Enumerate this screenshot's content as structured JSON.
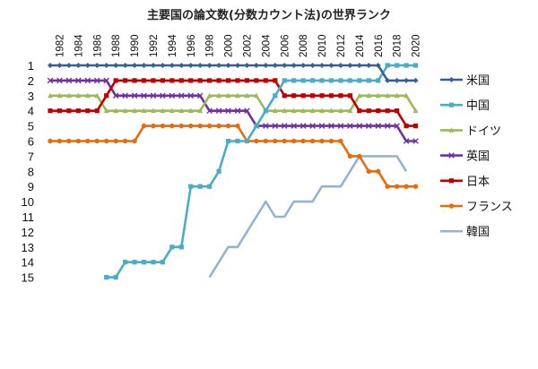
{
  "chart_data": {
    "type": "line",
    "title": "主要国の論文数(分数カウント法)の世界ランク",
    "x_ticks": [
      "1982",
      "1984",
      "1986",
      "1988",
      "1990",
      "1992",
      "1994",
      "1996",
      "1998",
      "2000",
      "2002",
      "2004",
      "2006",
      "2008",
      "2010",
      "2012",
      "2014",
      "2016",
      "2018",
      "2020"
    ],
    "y_ticks": [
      "1",
      "2",
      "3",
      "4",
      "5",
      "6",
      "7",
      "8",
      "9",
      "10",
      "11",
      "12",
      "13",
      "14",
      "15"
    ],
    "xlim": [
      1981,
      2020
    ],
    "ylim": [
      15,
      1
    ],
    "y_reversed": true,
    "grid": false,
    "legend_position": "right",
    "series": [
      {
        "name": "米国",
        "color": "#376092",
        "marker": "diamond",
        "points": [
          [
            1981,
            1
          ],
          [
            1982,
            1
          ],
          [
            1983,
            1
          ],
          [
            1984,
            1
          ],
          [
            1985,
            1
          ],
          [
            1986,
            1
          ],
          [
            1987,
            1
          ],
          [
            1988,
            1
          ],
          [
            1989,
            1
          ],
          [
            1990,
            1
          ],
          [
            1991,
            1
          ],
          [
            1992,
            1
          ],
          [
            1993,
            1
          ],
          [
            1994,
            1
          ],
          [
            1995,
            1
          ],
          [
            1996,
            1
          ],
          [
            1997,
            1
          ],
          [
            1998,
            1
          ],
          [
            1999,
            1
          ],
          [
            2000,
            1
          ],
          [
            2001,
            1
          ],
          [
            2002,
            1
          ],
          [
            2003,
            1
          ],
          [
            2004,
            1
          ],
          [
            2005,
            1
          ],
          [
            2006,
            1
          ],
          [
            2007,
            1
          ],
          [
            2008,
            1
          ],
          [
            2009,
            1
          ],
          [
            2010,
            1
          ],
          [
            2011,
            1
          ],
          [
            2012,
            1
          ],
          [
            2013,
            1
          ],
          [
            2014,
            1
          ],
          [
            2015,
            1
          ],
          [
            2016,
            1
          ],
          [
            2017,
            2
          ],
          [
            2018,
            2
          ],
          [
            2019,
            2
          ],
          [
            2020,
            2
          ]
        ]
      },
      {
        "name": "中国",
        "color": "#4BACC6",
        "marker": "square",
        "points": [
          [
            1987,
            15
          ],
          [
            1988,
            15
          ],
          [
            1989,
            14
          ],
          [
            1990,
            14
          ],
          [
            1991,
            14
          ],
          [
            1992,
            14
          ],
          [
            1993,
            14
          ],
          [
            1994,
            13
          ],
          [
            1995,
            13
          ],
          [
            1996,
            9
          ],
          [
            1997,
            9
          ],
          [
            1998,
            9
          ],
          [
            1999,
            8
          ],
          [
            2000,
            6
          ],
          [
            2001,
            6
          ],
          [
            2002,
            6
          ],
          [
            2003,
            5
          ],
          [
            2004,
            4
          ],
          [
            2005,
            3
          ],
          [
            2006,
            2
          ],
          [
            2007,
            2
          ],
          [
            2008,
            2
          ],
          [
            2009,
            2
          ],
          [
            2010,
            2
          ],
          [
            2011,
            2
          ],
          [
            2012,
            2
          ],
          [
            2013,
            2
          ],
          [
            2014,
            2
          ],
          [
            2015,
            2
          ],
          [
            2016,
            2
          ],
          [
            2017,
            1
          ],
          [
            2018,
            1
          ],
          [
            2019,
            1
          ],
          [
            2020,
            1
          ]
        ]
      },
      {
        "name": "ドイツ",
        "color": "#9BBB59",
        "marker": "triangle",
        "points": [
          [
            1981,
            3
          ],
          [
            1982,
            3
          ],
          [
            1983,
            3
          ],
          [
            1984,
            3
          ],
          [
            1985,
            3
          ],
          [
            1986,
            3
          ],
          [
            1987,
            4
          ],
          [
            1988,
            4
          ],
          [
            1989,
            4
          ],
          [
            1990,
            4
          ],
          [
            1991,
            4
          ],
          [
            1992,
            4
          ],
          [
            1993,
            4
          ],
          [
            1994,
            4
          ],
          [
            1995,
            4
          ],
          [
            1996,
            4
          ],
          [
            1997,
            4
          ],
          [
            1998,
            3
          ],
          [
            1999,
            3
          ],
          [
            2000,
            3
          ],
          [
            2001,
            3
          ],
          [
            2002,
            3
          ],
          [
            2003,
            3
          ],
          [
            2004,
            4
          ],
          [
            2005,
            4
          ],
          [
            2006,
            4
          ],
          [
            2007,
            4
          ],
          [
            2008,
            4
          ],
          [
            2009,
            4
          ],
          [
            2010,
            4
          ],
          [
            2011,
            4
          ],
          [
            2012,
            4
          ],
          [
            2013,
            4
          ],
          [
            2014,
            3
          ],
          [
            2015,
            3
          ],
          [
            2016,
            3
          ],
          [
            2017,
            3
          ],
          [
            2018,
            3
          ],
          [
            2019,
            3
          ],
          [
            2020,
            4
          ]
        ]
      },
      {
        "name": "英国",
        "color": "#7030A0",
        "marker": "x",
        "points": [
          [
            1981,
            2
          ],
          [
            1982,
            2
          ],
          [
            1983,
            2
          ],
          [
            1984,
            2
          ],
          [
            1985,
            2
          ],
          [
            1986,
            2
          ],
          [
            1987,
            2
          ],
          [
            1988,
            3
          ],
          [
            1989,
            3
          ],
          [
            1990,
            3
          ],
          [
            1991,
            3
          ],
          [
            1992,
            3
          ],
          [
            1993,
            3
          ],
          [
            1994,
            3
          ],
          [
            1995,
            3
          ],
          [
            1996,
            3
          ],
          [
            1997,
            3
          ],
          [
            1998,
            4
          ],
          [
            1999,
            4
          ],
          [
            2000,
            4
          ],
          [
            2001,
            4
          ],
          [
            2002,
            4
          ],
          [
            2003,
            5
          ],
          [
            2004,
            5
          ],
          [
            2005,
            5
          ],
          [
            2006,
            5
          ],
          [
            2007,
            5
          ],
          [
            2008,
            5
          ],
          [
            2009,
            5
          ],
          [
            2010,
            5
          ],
          [
            2011,
            5
          ],
          [
            2012,
            5
          ],
          [
            2013,
            5
          ],
          [
            2014,
            5
          ],
          [
            2015,
            5
          ],
          [
            2016,
            5
          ],
          [
            2017,
            5
          ],
          [
            2018,
            5
          ],
          [
            2019,
            6
          ],
          [
            2020,
            6
          ]
        ]
      },
      {
        "name": "日本",
        "color": "#C00000",
        "marker": "square",
        "points": [
          [
            1981,
            4
          ],
          [
            1982,
            4
          ],
          [
            1983,
            4
          ],
          [
            1984,
            4
          ],
          [
            1985,
            4
          ],
          [
            1986,
            4
          ],
          [
            1987,
            3
          ],
          [
            1988,
            2
          ],
          [
            1989,
            2
          ],
          [
            1990,
            2
          ],
          [
            1991,
            2
          ],
          [
            1992,
            2
          ],
          [
            1993,
            2
          ],
          [
            1994,
            2
          ],
          [
            1995,
            2
          ],
          [
            1996,
            2
          ],
          [
            1997,
            2
          ],
          [
            1998,
            2
          ],
          [
            1999,
            2
          ],
          [
            2000,
            2
          ],
          [
            2001,
            2
          ],
          [
            2002,
            2
          ],
          [
            2003,
            2
          ],
          [
            2004,
            2
          ],
          [
            2005,
            2
          ],
          [
            2006,
            3
          ],
          [
            2007,
            3
          ],
          [
            2008,
            3
          ],
          [
            2009,
            3
          ],
          [
            2010,
            3
          ],
          [
            2011,
            3
          ],
          [
            2012,
            3
          ],
          [
            2013,
            3
          ],
          [
            2014,
            4
          ],
          [
            2015,
            4
          ],
          [
            2016,
            4
          ],
          [
            2017,
            4
          ],
          [
            2018,
            4
          ],
          [
            2019,
            5
          ],
          [
            2020,
            5
          ]
        ]
      },
      {
        "name": "フランス",
        "color": "#E46C0A",
        "marker": "circle",
        "points": [
          [
            1981,
            6
          ],
          [
            1982,
            6
          ],
          [
            1983,
            6
          ],
          [
            1984,
            6
          ],
          [
            1985,
            6
          ],
          [
            1986,
            6
          ],
          [
            1987,
            6
          ],
          [
            1988,
            6
          ],
          [
            1989,
            6
          ],
          [
            1990,
            6
          ],
          [
            1991,
            5
          ],
          [
            1992,
            5
          ],
          [
            1993,
            5
          ],
          [
            1994,
            5
          ],
          [
            1995,
            5
          ],
          [
            1996,
            5
          ],
          [
            1997,
            5
          ],
          [
            1998,
            5
          ],
          [
            1999,
            5
          ],
          [
            2000,
            5
          ],
          [
            2001,
            5
          ],
          [
            2002,
            6
          ],
          [
            2003,
            6
          ],
          [
            2004,
            6
          ],
          [
            2005,
            6
          ],
          [
            2006,
            6
          ],
          [
            2007,
            6
          ],
          [
            2008,
            6
          ],
          [
            2009,
            6
          ],
          [
            2010,
            6
          ],
          [
            2011,
            6
          ],
          [
            2012,
            6
          ],
          [
            2013,
            7
          ],
          [
            2014,
            7
          ],
          [
            2015,
            8
          ],
          [
            2016,
            8
          ],
          [
            2017,
            9
          ],
          [
            2018,
            9
          ],
          [
            2019,
            9
          ],
          [
            2020,
            9
          ]
        ]
      },
      {
        "name": "韓国",
        "color": "#95B3D7",
        "marker": "none",
        "points": [
          [
            1998,
            15
          ],
          [
            1999,
            14
          ],
          [
            2000,
            13
          ],
          [
            2001,
            13
          ],
          [
            2002,
            12
          ],
          [
            2003,
            11
          ],
          [
            2004,
            10
          ],
          [
            2005,
            11
          ],
          [
            2006,
            11
          ],
          [
            2007,
            10
          ],
          [
            2008,
            10
          ],
          [
            2009,
            10
          ],
          [
            2010,
            9
          ],
          [
            2011,
            9
          ],
          [
            2012,
            9
          ],
          [
            2013,
            8
          ],
          [
            2014,
            7
          ],
          [
            2015,
            7
          ],
          [
            2016,
            7
          ],
          [
            2017,
            7
          ],
          [
            2018,
            7
          ],
          [
            2019,
            8
          ]
        ]
      }
    ]
  }
}
